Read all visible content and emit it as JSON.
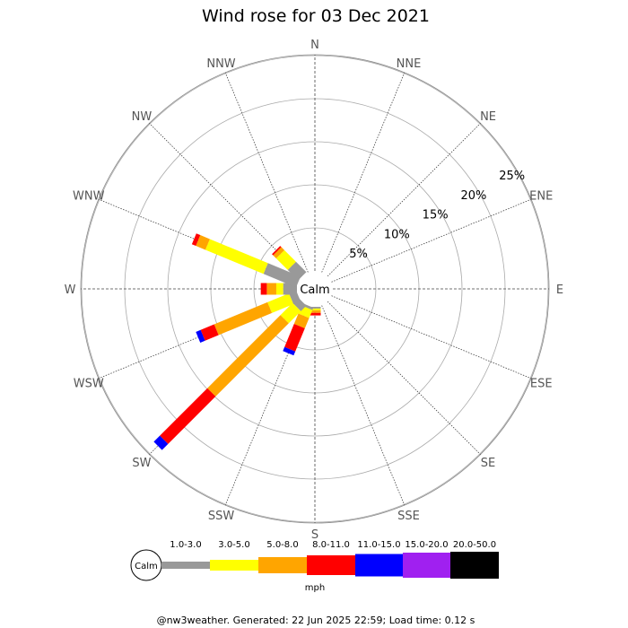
{
  "chart_data": {
    "type": "wind-rose",
    "title": "Wind rose for 03 Dec 2021",
    "directions": [
      "N",
      "NNE",
      "NE",
      "ENE",
      "E",
      "ESE",
      "SE",
      "SSE",
      "S",
      "SSW",
      "SW",
      "WSW",
      "W",
      "WNW",
      "NW",
      "NNW"
    ],
    "radial_ticks": [
      5,
      10,
      15,
      20,
      25
    ],
    "radial_tick_labels": [
      "5%",
      "10%",
      "15%",
      "20%",
      "25%"
    ],
    "calm_label": "Calm",
    "speed_unit": "mph",
    "bins": [
      {
        "label": "1.0-3.0",
        "color": "#999999"
      },
      {
        "label": "3.0-5.0",
        "color": "#ffff00"
      },
      {
        "label": "5.0-8.0",
        "color": "#ffa500"
      },
      {
        "label": "8.0-11.0",
        "color": "#ff0000"
      },
      {
        "label": "11.0-15.0",
        "color": "#0000ff"
      },
      {
        "label": "15.0-20.0",
        "color": "#a020f0"
      },
      {
        "label": "20.0-50.0",
        "color": "#000000"
      }
    ],
    "series": [
      {
        "direction": "S",
        "values": [
          0.2,
          0.2,
          0.3,
          0.3,
          0,
          0,
          0
        ]
      },
      {
        "direction": "SSW",
        "values": [
          0.3,
          1.0,
          1.3,
          2.9,
          0.5,
          0,
          0
        ]
      },
      {
        "direction": "SW",
        "values": [
          0.9,
          2.0,
          12.0,
          7.8,
          1.0,
          0,
          0
        ]
      },
      {
        "direction": "WSW",
        "values": [
          0.9,
          2.7,
          6.7,
          1.7,
          0.6,
          0,
          0
        ]
      },
      {
        "direction": "W",
        "values": [
          1.6,
          0.8,
          1.1,
          0.7,
          0,
          0,
          0
        ]
      },
      {
        "direction": "WNW",
        "values": [
          4.1,
          7.3,
          1.2,
          0.5,
          0,
          0,
          0
        ]
      },
      {
        "direction": "NW",
        "values": [
          1.7,
          1.9,
          0.5,
          0.2,
          0,
          0,
          0
        ]
      }
    ],
    "grid": true
  },
  "footer": "@nw3weather. Generated: 22 Jun 2025 22:59; Load time: 0.12 s"
}
